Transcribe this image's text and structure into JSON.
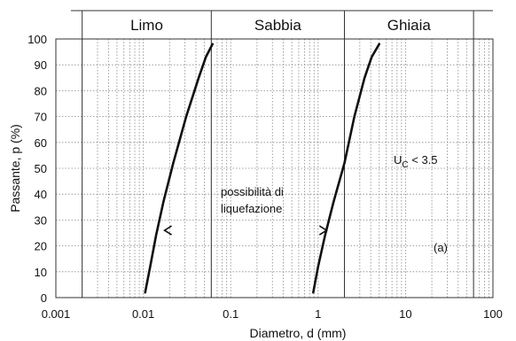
{
  "chart_data": {
    "type": "line",
    "xlabel": "Diametro, d (mm)",
    "ylabel": "Passante, p (%)",
    "x_scale": "log",
    "xlim": [
      0.001,
      100
    ],
    "ylim": [
      0,
      100
    ],
    "x_ticks": [
      "0.001",
      "0.01",
      "0.1",
      "1",
      "10",
      "100"
    ],
    "y_ticks": [
      "0",
      "10",
      "20",
      "30",
      "40",
      "50",
      "60",
      "70",
      "80",
      "90",
      "100"
    ],
    "grid": true,
    "bands": [
      {
        "label": "Limo",
        "from": 0.002,
        "to": 0.06
      },
      {
        "label": "Sabbia",
        "from": 0.06,
        "to": 2
      },
      {
        "label": "Ghiaia",
        "from": 2,
        "to": 60
      }
    ],
    "series": [
      {
        "points": [
          [
            0.0105,
            2
          ],
          [
            0.012,
            12
          ],
          [
            0.014,
            24
          ],
          [
            0.017,
            37
          ],
          [
            0.022,
            52
          ],
          [
            0.031,
            70
          ],
          [
            0.043,
            85
          ],
          [
            0.052,
            93
          ],
          [
            0.062,
            98
          ]
        ]
      },
      {
        "points": [
          [
            0.88,
            2
          ],
          [
            1.0,
            12
          ],
          [
            1.2,
            24
          ],
          [
            1.5,
            37
          ],
          [
            2.0,
            52
          ],
          [
            2.6,
            70
          ],
          [
            3.4,
            85
          ],
          [
            4.1,
            93
          ],
          [
            5.0,
            98
          ]
        ]
      }
    ],
    "annotations": {
      "liquefaction": {
        "line1": "possibilità di",
        "line2": "liquefazione"
      },
      "uc_main": "U",
      "uc_sub": "C",
      "uc_rest": " < 3.5",
      "panel": "(a)"
    },
    "arrows": [
      {
        "x": 0.0175,
        "y": 26
      },
      {
        "x": 1.25,
        "y": 26
      }
    ]
  }
}
